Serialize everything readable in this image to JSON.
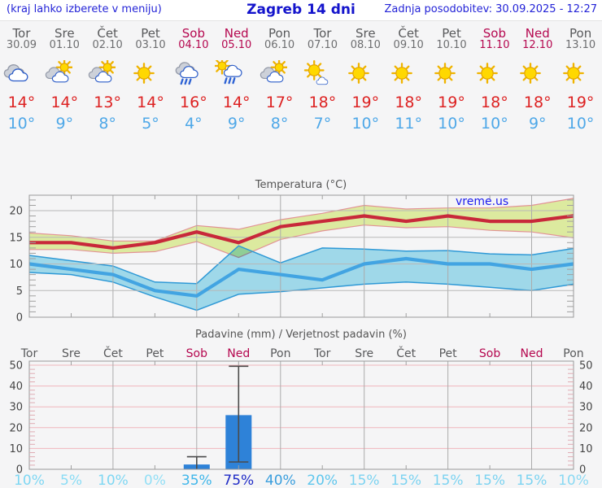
{
  "header": {
    "left_note": "(kraj lahko izberete v meniju)",
    "title": "Zagreb 14 dni",
    "updated": "Zadnja posodobitev: 30.09.2025 - 12:27"
  },
  "watermark": "vreme.us",
  "colors": {
    "header_text": "#2323d7",
    "title_text": "#1414cc",
    "watermark": "#1a1aee",
    "day_name": "#58595b",
    "day_date": "#6d6e70",
    "weekend": "#b5074f",
    "tmax": "#dd2222",
    "tmin": "#4fa8e8",
    "chart_title": "#555555",
    "axis_label": "#444444",
    "grid_vertical": "#ababab",
    "grid_horizontal": "#b8b8b8",
    "border": "#999999",
    "tick": "#a0a0a0",
    "precip_grid_pink": "#f0b6bc",
    "precip_tick_pink": "#e0acb4",
    "max_line": "#c8283a",
    "max_band": "#dcea9f",
    "max_band_edge": "#e29396",
    "min_line": "#42a4e2",
    "min_band": "#a6e1f2",
    "min_band_edge": "#2f99d6",
    "bar": "#2e82d8",
    "whisker": "#4a4a4a"
  },
  "days": [
    {
      "name": "Tor",
      "date": "30.09",
      "weekend": false,
      "icon": "cloudy",
      "tmax_label": "14°",
      "tmin_label": "10°"
    },
    {
      "name": "Sre",
      "date": "01.10",
      "weekend": false,
      "icon": "sun-cloud",
      "tmax_label": "14°",
      "tmin_label": "9°"
    },
    {
      "name": "Čet",
      "date": "02.10",
      "weekend": false,
      "icon": "sun-cloud",
      "tmax_label": "13°",
      "tmin_label": "8°"
    },
    {
      "name": "Pet",
      "date": "03.10",
      "weekend": false,
      "icon": "sunny",
      "tmax_label": "14°",
      "tmin_label": "5°"
    },
    {
      "name": "Sob",
      "date": "04.10",
      "weekend": true,
      "icon": "rain",
      "tmax_label": "16°",
      "tmin_label": "4°"
    },
    {
      "name": "Ned",
      "date": "05.10",
      "weekend": true,
      "icon": "sun-rain",
      "tmax_label": "14°",
      "tmin_label": "9°"
    },
    {
      "name": "Pon",
      "date": "06.10",
      "weekend": false,
      "icon": "sun-cloud",
      "tmax_label": "17°",
      "tmin_label": "8°"
    },
    {
      "name": "Tor",
      "date": "07.10",
      "weekend": false,
      "icon": "sun-small-cloud",
      "tmax_label": "18°",
      "tmin_label": "7°"
    },
    {
      "name": "Sre",
      "date": "08.10",
      "weekend": false,
      "icon": "sunny",
      "tmax_label": "19°",
      "tmin_label": "10°"
    },
    {
      "name": "Čet",
      "date": "09.10",
      "weekend": false,
      "icon": "sunny",
      "tmax_label": "18°",
      "tmin_label": "11°"
    },
    {
      "name": "Pet",
      "date": "10.10",
      "weekend": false,
      "icon": "sunny",
      "tmax_label": "19°",
      "tmin_label": "10°"
    },
    {
      "name": "Sob",
      "date": "11.10",
      "weekend": true,
      "icon": "sunny",
      "tmax_label": "18°",
      "tmin_label": "10°"
    },
    {
      "name": "Ned",
      "date": "12.10",
      "weekend": true,
      "icon": "sunny",
      "tmax_label": "18°",
      "tmin_label": "9°"
    },
    {
      "name": "Pon",
      "date": "13.10",
      "weekend": false,
      "icon": "sunny",
      "tmax_label": "19°",
      "tmin_label": "10°"
    }
  ],
  "chart_data": [
    {
      "type": "area",
      "title": "Temperatura (°C)",
      "x_labels": [
        "Tor",
        "Sre",
        "Čet",
        "Pet",
        "Sob",
        "Ned",
        "Pon",
        "Tor",
        "Sre",
        "Čet",
        "Pet",
        "Sob",
        "Ned",
        "Pon"
      ],
      "ylim": [
        0,
        22.9
      ],
      "yticks": [
        0,
        5,
        10,
        15,
        20
      ],
      "grid": true,
      "series": [
        {
          "name": "max-temp",
          "values": [
            14,
            14,
            13,
            14,
            16,
            14,
            17,
            18,
            19,
            18,
            19,
            18,
            18,
            19
          ]
        },
        {
          "name": "min-temp",
          "values": [
            10,
            9,
            8,
            5,
            4,
            9,
            8,
            7,
            10,
            11,
            10,
            10,
            9,
            10
          ]
        },
        {
          "name": "max-range-upper",
          "values": [
            15.8,
            15.3,
            14.3,
            14.3,
            17.2,
            16.5,
            18.3,
            19.5,
            21,
            20.3,
            20.5,
            20.5,
            21,
            22.3
          ]
        },
        {
          "name": "max-range-lower",
          "values": [
            12.7,
            12.7,
            12,
            12.3,
            14.2,
            11.2,
            14.6,
            16.2,
            17.3,
            16.8,
            17,
            16.3,
            16,
            14.9
          ]
        },
        {
          "name": "min-range-upper",
          "values": [
            11.6,
            10.6,
            9.6,
            6.6,
            6.3,
            13.4,
            10.2,
            13,
            12.8,
            12.4,
            12.5,
            11.9,
            11.7,
            12.9
          ]
        },
        {
          "name": "min-range-lower",
          "values": [
            8.4,
            8,
            6.6,
            3.8,
            1.3,
            4.3,
            4.8,
            5.5,
            6.2,
            6.6,
            6.2,
            5.6,
            5,
            6.2
          ]
        }
      ]
    },
    {
      "type": "bar",
      "title": "Padavine (mm) / Verjetnost padavin (%)",
      "categories": [
        "Tor",
        "Sre",
        "Čet",
        "Pet",
        "Sob",
        "Ned",
        "Pon",
        "Tor",
        "Sre",
        "Čet",
        "Pet",
        "Sob",
        "Ned",
        "Pon"
      ],
      "values": [
        0,
        0,
        0,
        0,
        2.3,
        26,
        0,
        0,
        0,
        0,
        0,
        0,
        0,
        0
      ],
      "range_low": [
        null,
        null,
        null,
        null,
        0,
        3.5,
        null,
        null,
        null,
        null,
        null,
        null,
        null,
        null
      ],
      "range_high": [
        null,
        null,
        null,
        null,
        6,
        49.5,
        null,
        null,
        null,
        null,
        null,
        null,
        null,
        null
      ],
      "probabilities": [
        "10%",
        "5%",
        "10%",
        "0%",
        "35%",
        "75%",
        "40%",
        "20%",
        "15%",
        "15%",
        "15%",
        "15%",
        "15%",
        "10%"
      ],
      "prob_colors": [
        "#7ed7f3",
        "#8adcf5",
        "#7ed7f3",
        "#92dff6",
        "#3fb6ea",
        "#1e2ac6",
        "#3a9edd",
        "#5ec6ed",
        "#7cd3f1",
        "#7cd3f1",
        "#7cd3f1",
        "#7cd3f1",
        "#7cd3f1",
        "#8ad9f3"
      ],
      "ylim": [
        0,
        52
      ],
      "yticks": [
        0,
        10,
        20,
        30,
        40,
        50
      ],
      "grid": true
    }
  ]
}
